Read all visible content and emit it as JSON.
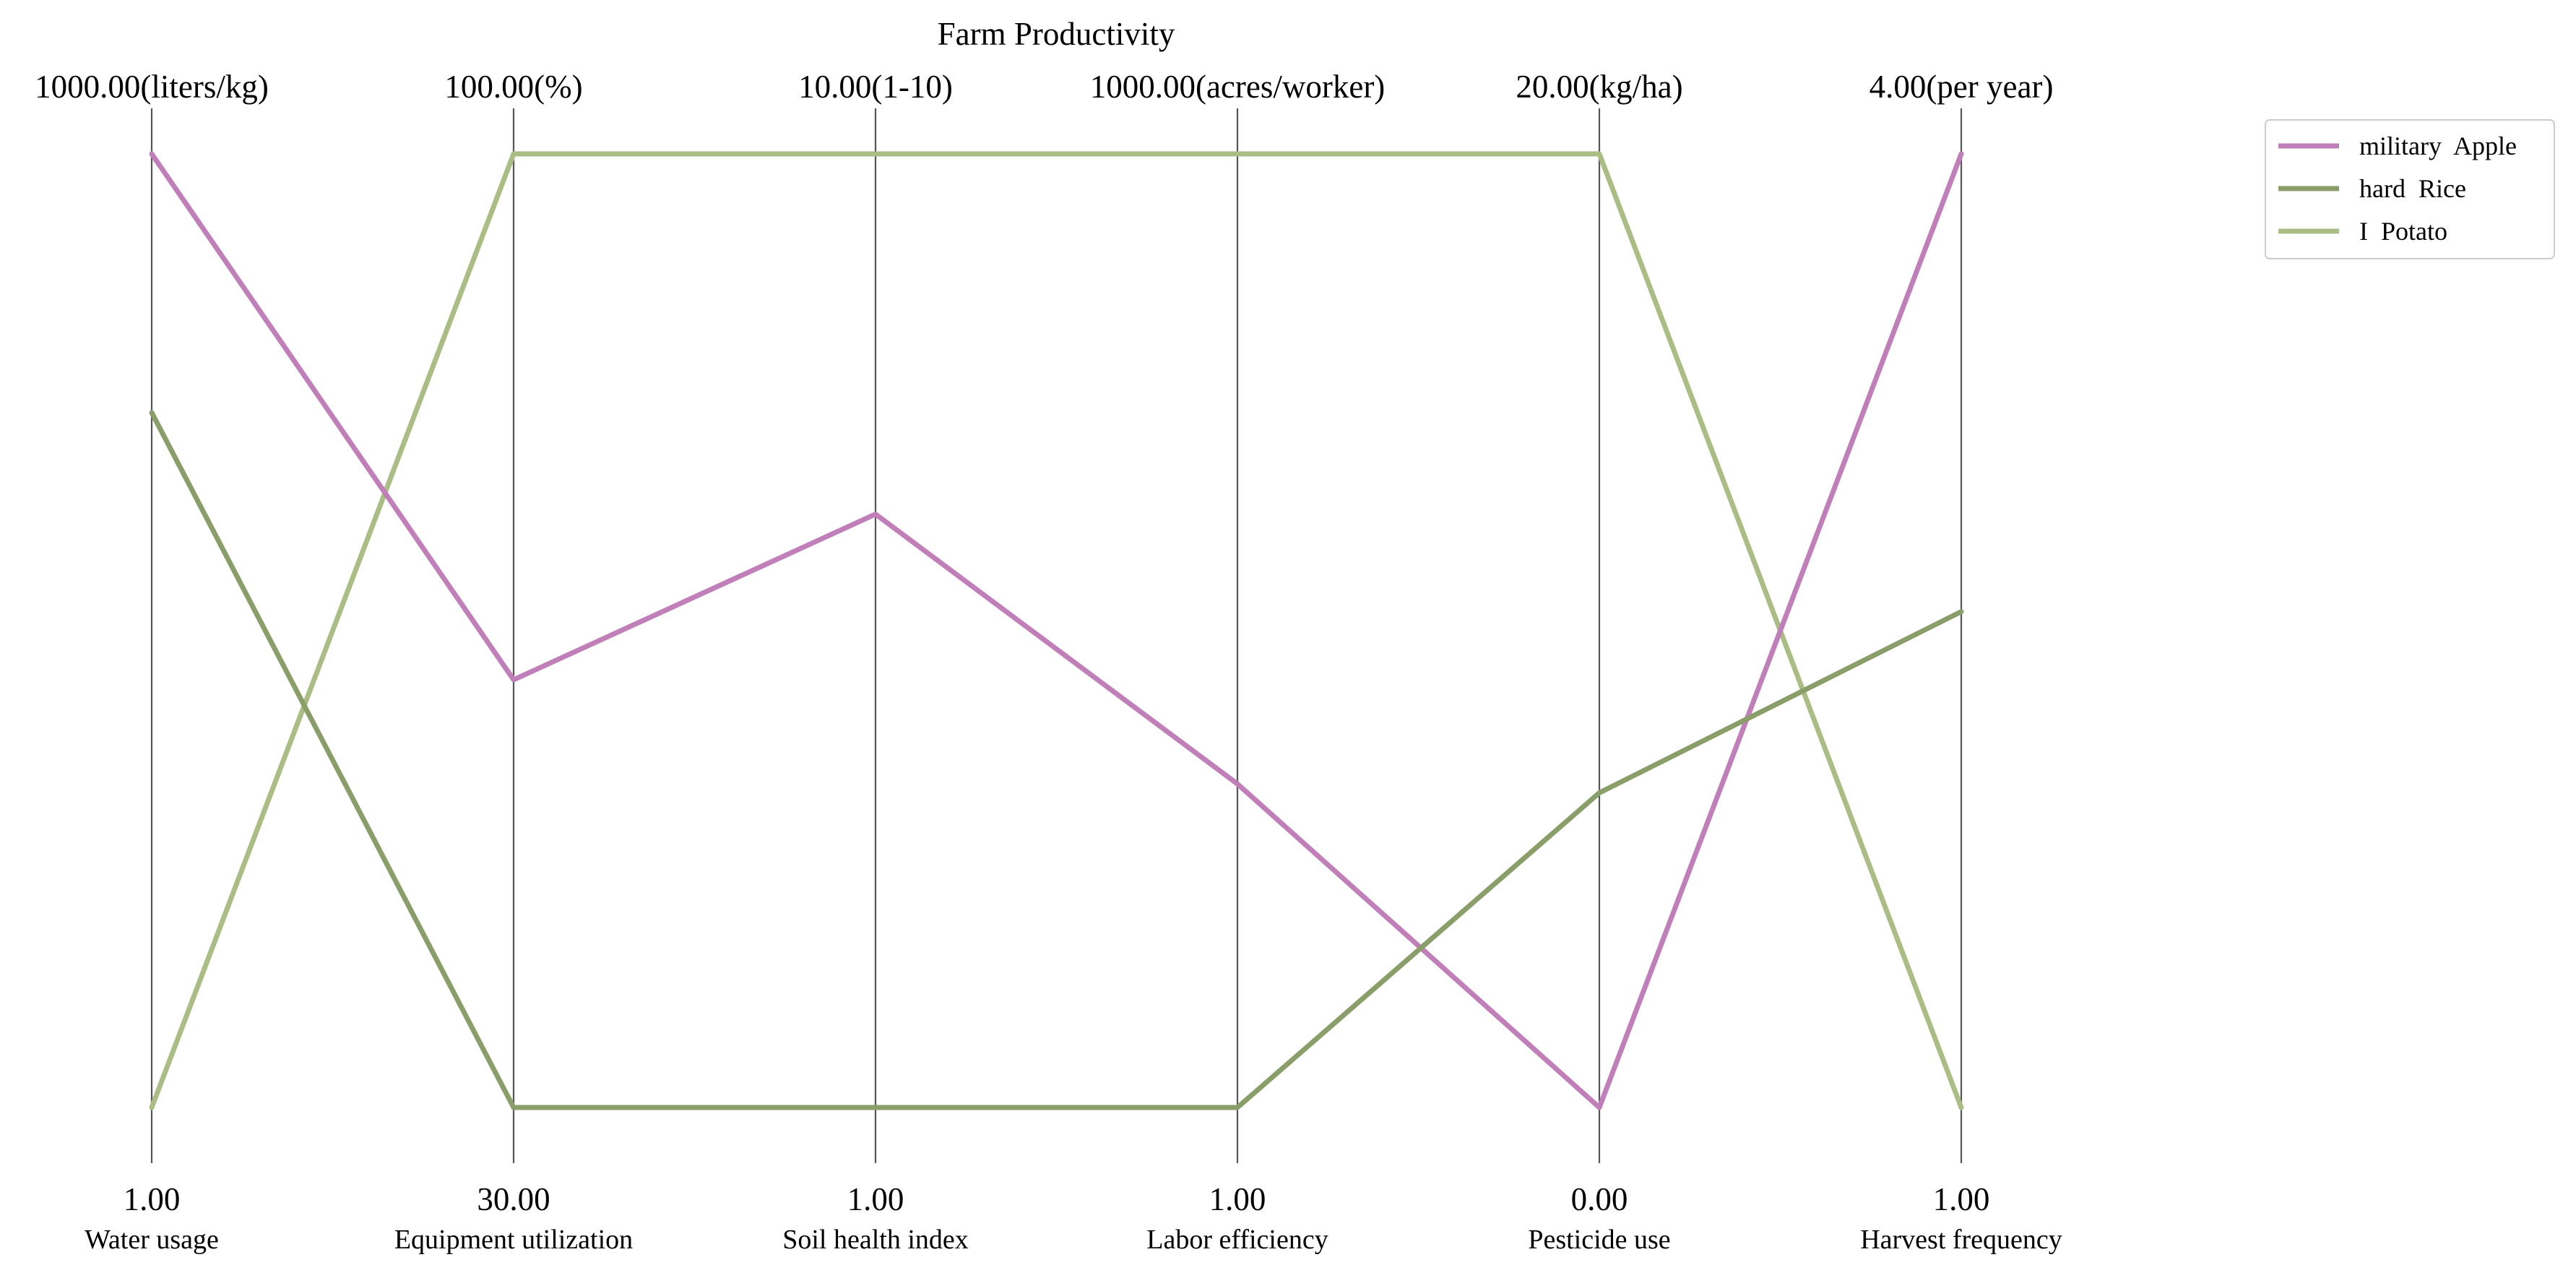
{
  "chart_data": {
    "type": "parallel-coordinates",
    "title": "Farm Productivity",
    "axes": [
      {
        "name": "Water usage",
        "unit": "liters/kg",
        "min": 1.0,
        "max": 1000.0,
        "min_label": "1.00",
        "max_label": "1000.00(liters/kg)"
      },
      {
        "name": "Equipment utilization",
        "unit": "%",
        "min": 30.0,
        "max": 100.0,
        "min_label": "30.00",
        "max_label": "100.00(%)"
      },
      {
        "name": "Soil health index",
        "unit": "1-10",
        "min": 1.0,
        "max": 10.0,
        "min_label": "1.00",
        "max_label": "10.00(1-10)"
      },
      {
        "name": "Labor efficiency",
        "unit": "acres/worker",
        "min": 1.0,
        "max": 1000.0,
        "min_label": "1.00",
        "max_label": "1000.00(acres/worker)"
      },
      {
        "name": "Pesticide use",
        "unit": "kg/ha",
        "min": 0.0,
        "max": 20.0,
        "min_label": "0.00",
        "max_label": "20.00(kg/ha)"
      },
      {
        "name": "Harvest frequency",
        "unit": "per year",
        "min": 1.0,
        "max": 4.0,
        "min_label": "1.00",
        "max_label": "4.00(per year)"
      }
    ],
    "series": [
      {
        "name": "military  Apple",
        "color": "#c07fb8",
        "values": [
          1000,
          61.4,
          6.6,
          340,
          0.0,
          4.0
        ]
      },
      {
        "name": "hard  Rice",
        "color": "#8a9e6a",
        "values": [
          729,
          30.0,
          1.0,
          1.0,
          6.6,
          2.56
        ]
      },
      {
        "name": "I  Potato",
        "color": "#aabd85",
        "values": [
          1.0,
          100.0,
          10.0,
          1000.0,
          20.0,
          1.0
        ]
      }
    ],
    "legend_position": "top-right",
    "grid": false
  }
}
